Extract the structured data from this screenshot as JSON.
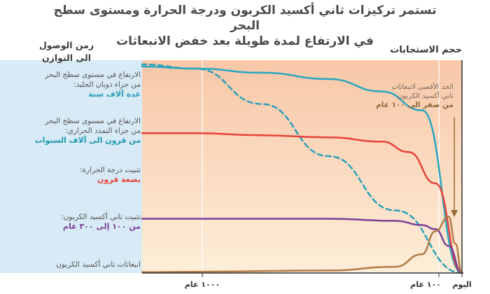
{
  "title": {
    "line1": "تستمر تركيزات ثاني أكسيد الكربون ودرجة الحرارة ومستوى سطح البحر",
    "line2": "في الارتفاع لمدة طويلة بعد خفض الانبعاثات"
  },
  "left_header": {
    "line1": "زمن الوصول",
    "line2": "الى التوازن"
  },
  "chart_data": {
    "type": "line",
    "title": "",
    "ylabel": "حجم الاستجابات",
    "xlabel": "",
    "y_scale": "relative, no ticks",
    "x_ticks": [
      {
        "label": "١٠٠٠ عام",
        "x": 1000
      },
      {
        "label": "١٠٠ عام",
        "x": 100
      },
      {
        "label": "اليوم",
        "x": 0
      }
    ],
    "x_axis_direction": "reversed (time remaining before today, decreasing to the right)",
    "background": {
      "gradient_top": "#f8c7a8",
      "gradient_bottom": "#fdeed8"
    },
    "series": [
      {
        "name": "الارتفاع في مستوى سطح البحر من جراء ذوبان الجليد:",
        "time_label": "عدة آلاف سنة",
        "color": "#2a9fb8",
        "style": "dashed",
        "points": [
          [
            0,
            0
          ],
          [
            0.5,
            0.3
          ],
          [
            1,
            0.56
          ],
          [
            1.5,
            0.81
          ],
          [
            2,
            0.98
          ],
          [
            2.4,
            1
          ]
        ]
      },
      {
        "name": "الارتفاع في مستوى سطح البحر من جراء التمدد الحراري:",
        "time_label": "من قرون الى آلاف السنوات",
        "color": "#29a6c0",
        "style": "solid",
        "points": [
          [
            0,
            0
          ],
          [
            0.3,
            0.78
          ],
          [
            0.6,
            0.87
          ],
          [
            1,
            0.93
          ],
          [
            1.5,
            0.96
          ],
          [
            2,
            0.98
          ],
          [
            2.4,
            0.99
          ]
        ]
      },
      {
        "name": "تثبيت درجة الحرارة:",
        "time_label": "بضعة قرون",
        "color": "#e8423a",
        "style": "solid",
        "points": [
          [
            0,
            0
          ],
          [
            0.2,
            0.43
          ],
          [
            0.4,
            0.58
          ],
          [
            0.6,
            0.63
          ],
          [
            1,
            0.65
          ],
          [
            1.5,
            0.66
          ],
          [
            2,
            0.67
          ],
          [
            2.4,
            0.67
          ]
        ]
      },
      {
        "name": "تثبيت ثاني أكسيد الكربون:",
        "time_label": "من ١٠٠ إلى ٣٠٠ عام",
        "color": "#7b3f98",
        "style": "solid",
        "points": [
          [
            0,
            0
          ],
          [
            0.1,
            0.13
          ],
          [
            0.2,
            0.21
          ],
          [
            0.3,
            0.23
          ],
          [
            0.5,
            0.25
          ],
          [
            1,
            0.26
          ],
          [
            1.5,
            0.26
          ],
          [
            2,
            0.26
          ],
          [
            2.4,
            0.26
          ]
        ]
      },
      {
        "name": "انبعاثات ثاني أكسيد الكربون",
        "time_label": "",
        "color": "#b27a46",
        "style": "solid",
        "points": [
          [
            0,
            0
          ],
          [
            0.05,
            0.14
          ],
          [
            0.1,
            0.27
          ],
          [
            0.2,
            0.2
          ],
          [
            0.3,
            0.09
          ],
          [
            0.5,
            0.03
          ],
          [
            1,
            0.012
          ],
          [
            2,
            0.006
          ],
          [
            2.4,
            0.004
          ]
        ]
      }
    ],
    "annotation": {
      "line1": "الحد الأقصى لانبعاثات",
      "line2": "ثاني أكسيد الكربون",
      "line3": "من صفر الى ١٠٠ عام",
      "color": "#a0703a"
    }
  },
  "left_labels": [
    {
      "line1": "الارتفاع في مستوى سطح البحر",
      "line2": "من جراء ذوبان الجليد:",
      "time": "عدة آلاف سنة",
      "color": "#2a9fb8"
    },
    {
      "line1": "الارتفاع في مستوى سطح البحر",
      "line2": "من جراء التمدد الحراري:",
      "time": "من قرون الى آلاف السنوات",
      "color": "#1f98b0"
    },
    {
      "line1": "تثبيت درجة الحرارة:",
      "line2": "",
      "time": "بضعة قرون",
      "color": "#e8423a"
    },
    {
      "line1": "تثبيت ثاني أكسيد الكربون:",
      "line2": "",
      "time": "من ١٠٠ إلى ٣٠٠ عام",
      "color": "#7b3f98"
    },
    {
      "line1": "انبعاثات ثاني أكسيد الكربون",
      "line2": "",
      "time": "",
      "color": "#b27a46"
    }
  ]
}
